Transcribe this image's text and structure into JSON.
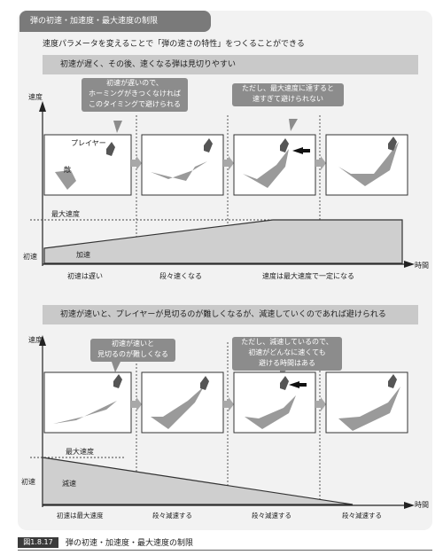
{
  "header": {
    "title": "弾の初速・加速度・最大速度の制限"
  },
  "intro": "速度パラメータを変えることで「弾の速さの特性」をつくることができる",
  "section1": {
    "heading": "初速が遅く、その後、速くなる弾は見切りやすい",
    "callout_left": "初速が遅いので、\nホーミングがきつくなければ\nこのタイミングで避けられる",
    "callout_right": "ただし、最大速度に達すると\n速すぎて避けられない",
    "player_label": "プレイヤー",
    "enemy_label": "敵",
    "axis_y": "速度",
    "axis_x": "時間",
    "max_speed_label": "最大速度",
    "initial_speed_label": "初速",
    "area_label": "加速",
    "phases": [
      "初速は遅い",
      "段々速くなる",
      "速度は最大速度で一定になる"
    ]
  },
  "section2": {
    "heading": "初速が速いと、プレイヤーが見切るのが難しくなるが、減速していくのであれば避けられる",
    "callout_left": "初速が速いと\n見切るのが難しくなる",
    "callout_right": "ただし、減速しているので、\n初速がどんなに速くても\n避ける時間はある",
    "axis_y": "速度",
    "axis_x": "時間",
    "max_speed_label": "最大速度",
    "initial_speed_label": "初速",
    "area_label": "減速",
    "phases": [
      "初速は最大速度",
      "段々減速する",
      "段々減速する",
      "段々減速する"
    ]
  },
  "caption": {
    "figure_no": "図1.8.17",
    "text": "弾の初速・加速度・最大速度の制限"
  },
  "colors": {
    "panel": "#f2f2f2",
    "bar": "#c9c9c9",
    "callout": "#8c8c8c",
    "fill": "#cfcfcf",
    "tab": "#7a7a7a"
  }
}
